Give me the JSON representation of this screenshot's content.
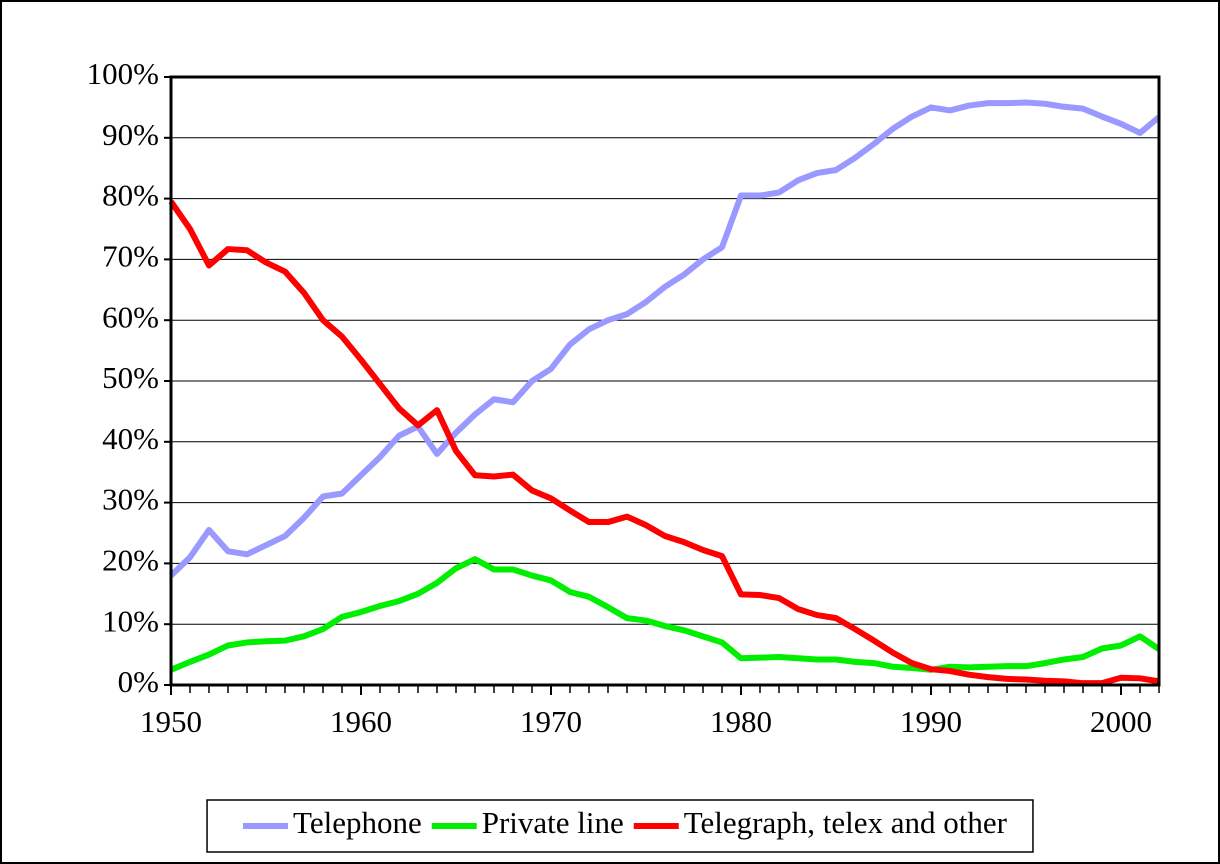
{
  "chart_data": {
    "type": "line",
    "x": [
      1950,
      1951,
      1952,
      1953,
      1954,
      1955,
      1956,
      1957,
      1958,
      1959,
      1960,
      1961,
      1962,
      1963,
      1964,
      1965,
      1966,
      1967,
      1968,
      1969,
      1970,
      1971,
      1972,
      1973,
      1974,
      1975,
      1976,
      1977,
      1978,
      1979,
      1980,
      1981,
      1982,
      1983,
      1984,
      1985,
      1986,
      1987,
      1988,
      1989,
      1990,
      1991,
      1992,
      1993,
      1994,
      1995,
      1996,
      1997,
      1998,
      1999,
      2000,
      2001,
      2002
    ],
    "series": [
      {
        "name": "Telephone",
        "color": "#9999ff",
        "values": [
          18,
          21,
          25.5,
          22,
          21.5,
          23,
          24.5,
          27.5,
          31,
          31.5,
          34.5,
          37.5,
          41,
          42.5,
          38,
          41.5,
          44.5,
          47,
          46.5,
          50,
          52,
          56,
          58.5,
          60,
          61,
          63,
          65.5,
          67.5,
          70,
          72,
          80.5,
          80.5,
          81,
          83,
          84.2,
          84.7,
          86.7,
          89,
          91.5,
          93.5,
          95,
          94.5,
          95.3,
          95.7,
          95.7,
          95.8,
          95.6,
          95.1,
          94.8,
          93.5,
          92.3,
          90.8,
          93.4
        ]
      },
      {
        "name": "Private line",
        "color": "#00ee00",
        "values": [
          2.5,
          3.8,
          5,
          6.5,
          7,
          7.2,
          7.3,
          8,
          9.2,
          11.2,
          12,
          13,
          13.8,
          15,
          16.8,
          19.2,
          20.7,
          19,
          19,
          18,
          17.2,
          15.3,
          14.5,
          12.8,
          11,
          10.6,
          9.7,
          9,
          8,
          7,
          4.4,
          4.5,
          4.6,
          4.4,
          4.2,
          4.2,
          3.8,
          3.6,
          3,
          2.8,
          2.5,
          3,
          2.9,
          3,
          3.1,
          3.1,
          3.6,
          4.2,
          4.6,
          6,
          6.5,
          8,
          5.9
        ]
      },
      {
        "name": "Telegraph, telex and other",
        "color": "#ff0000",
        "values": [
          79.5,
          75,
          69,
          71.7,
          71.5,
          69.5,
          68,
          64.5,
          60,
          57.3,
          53.5,
          49.5,
          45.5,
          42.7,
          45.2,
          38.5,
          34.5,
          34.3,
          34.6,
          32,
          30.7,
          28.7,
          26.8,
          26.8,
          27.7,
          26.3,
          24.5,
          23.5,
          22.2,
          21.2,
          14.9,
          14.8,
          14.3,
          12.5,
          11.5,
          11,
          9.2,
          7.3,
          5.3,
          3.6,
          2.6,
          2.3,
          1.7,
          1.3,
          1,
          0.9,
          0.7,
          0.6,
          0.3,
          0.3,
          1.2,
          1.1,
          0.6
        ]
      }
    ],
    "xlim": [
      1950,
      2002
    ],
    "xticks": [
      1950,
      1960,
      1970,
      1980,
      1990,
      2000
    ],
    "ylim": [
      0,
      100
    ],
    "yticks": [
      {
        "value": 0,
        "label": "0%"
      },
      {
        "value": 10,
        "label": "10%"
      },
      {
        "value": 20,
        "label": "20%"
      },
      {
        "value": 30,
        "label": "30%"
      },
      {
        "value": 40,
        "label": "40%"
      },
      {
        "value": 50,
        "label": "50%"
      },
      {
        "value": 60,
        "label": "60%"
      },
      {
        "value": 70,
        "label": "70%"
      },
      {
        "value": 80,
        "label": "80%"
      },
      {
        "value": 90,
        "label": "90%"
      },
      {
        "value": 100,
        "label": "100%"
      }
    ],
    "grid": true,
    "legend": "bottom"
  }
}
